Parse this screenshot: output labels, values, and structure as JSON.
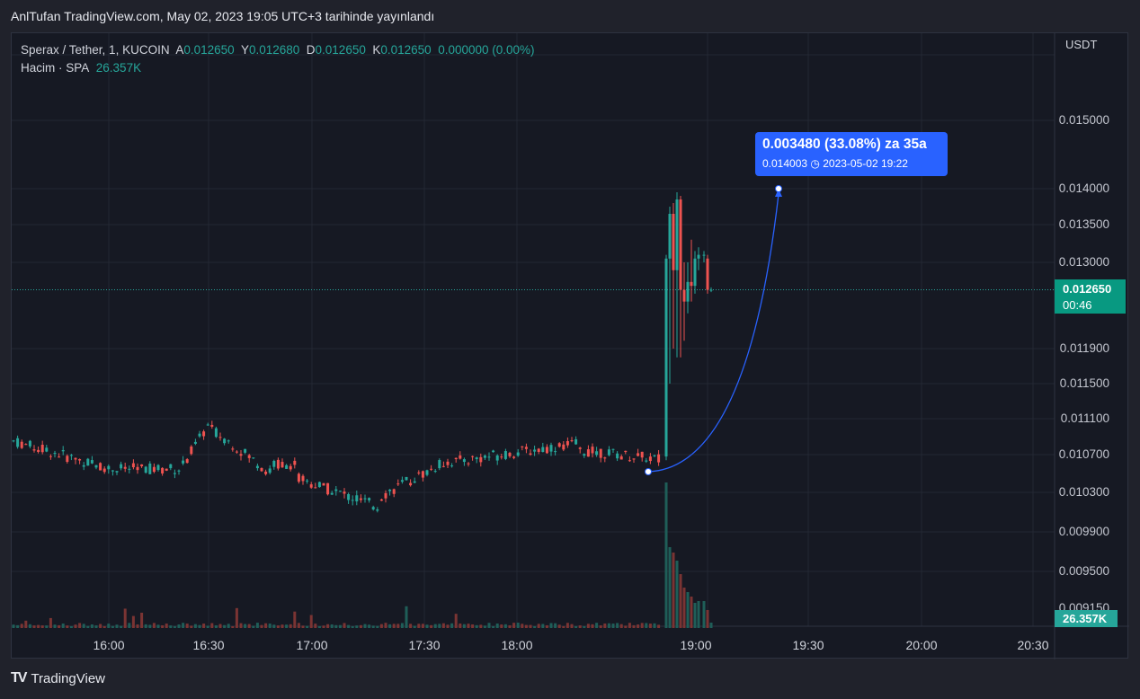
{
  "header": {
    "published": "AnlTufan TradingView.com, May 02, 2023 19:05 UTC+3 tarihinde yayınlandı"
  },
  "legend": {
    "symbol": "Sperax / Tether, 1, KUCOIN",
    "open_label": "A",
    "open": "0.012650",
    "high_label": "Y",
    "high": "0.012680",
    "low_label": "D",
    "low": "0.012650",
    "close_label": "K",
    "close": "0.012650",
    "change": "0.000000 (0.00%)",
    "volume_label": "Hacim · SPA",
    "volume": "26.357K"
  },
  "currency": "USDT",
  "price_axis": [
    "0.015000",
    "0.014000",
    "0.013500",
    "0.013000",
    "0.011900",
    "0.011500",
    "0.011100",
    "0.010700",
    "0.010300",
    "0.009900",
    "0.009500",
    "0.009150"
  ],
  "time_axis": [
    "16:00",
    "16:30",
    "17:00",
    "17:30",
    "18:00",
    "19:00",
    "19:30",
    "20:00",
    "20:30"
  ],
  "last_price": {
    "price": "0.012650",
    "countdown": "00:46"
  },
  "volume_badge": "26.357K",
  "annotation": {
    "line1": "0.003480 (33.08%) za 35a",
    "line2_price": "0.014003",
    "line2_date": "2023-05-02  19:22"
  },
  "footer": {
    "brand": "TradingView",
    "logo": "TV"
  },
  "colors": {
    "up": "#26a69a",
    "down": "#ef5350",
    "accent": "#2962ff",
    "bg": "#161923"
  }
}
